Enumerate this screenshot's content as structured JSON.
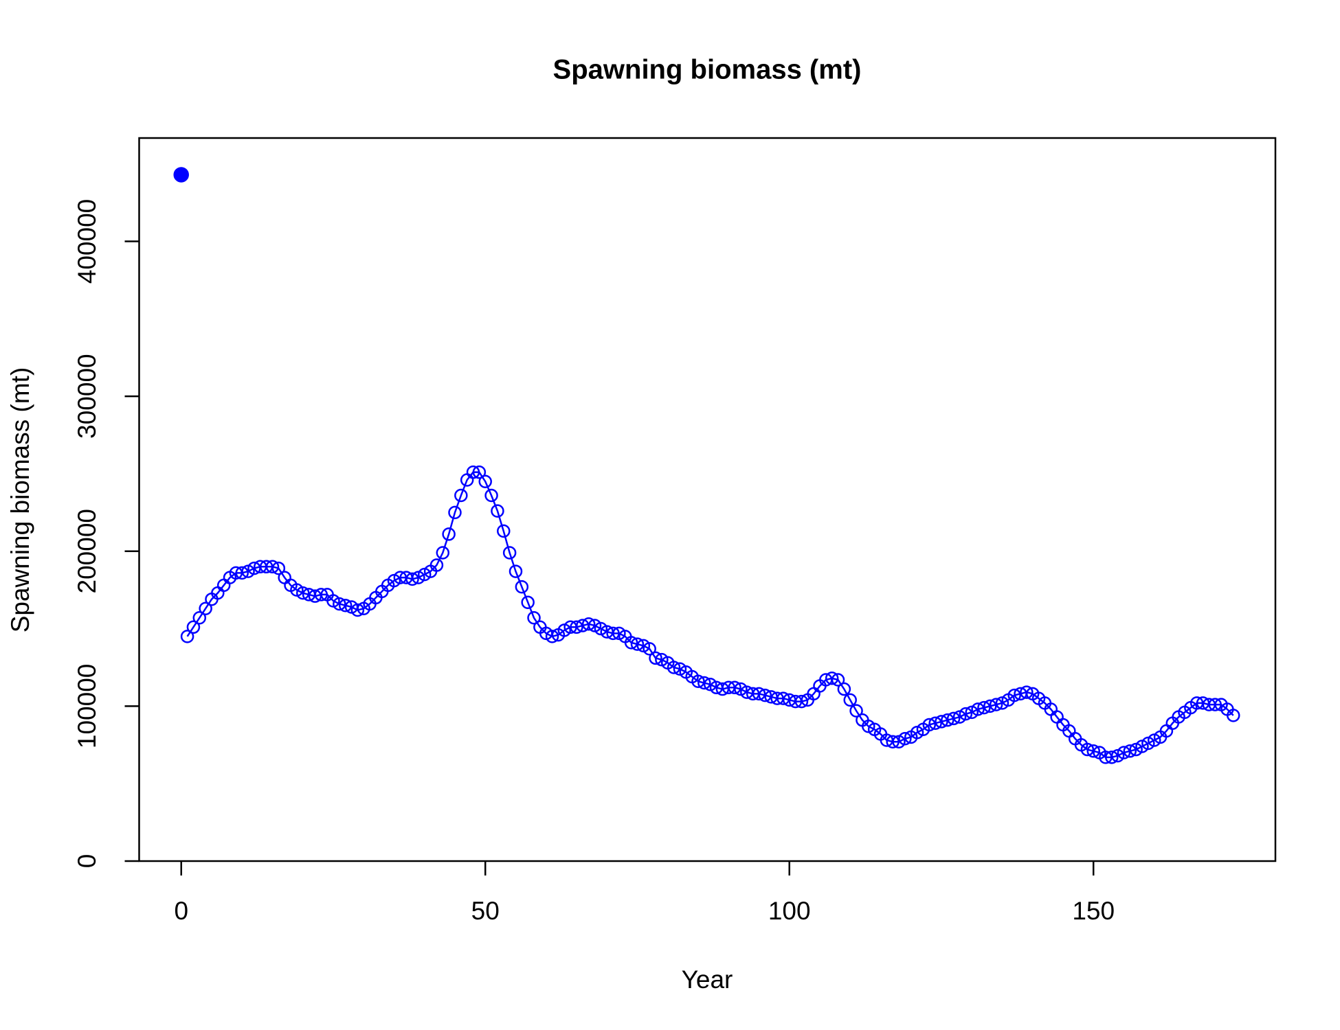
{
  "chart_data": {
    "type": "line",
    "title": "Spawning biomass (mt)",
    "xlabel": "Year",
    "ylabel": "Spawning biomass (mt)",
    "xlim": [
      -6.92,
      179.92
    ],
    "ylim": [
      0,
      466700
    ],
    "xticks": [
      0,
      50,
      100,
      150
    ],
    "yticks": [
      0,
      100000,
      200000,
      300000,
      400000
    ],
    "grid": false,
    "series": [
      {
        "color": "#0000ff",
        "marker": "filled-circle",
        "line": false,
        "x": [
          0
        ],
        "values": [
          443000
        ]
      },
      {
        "color": "#0000ff",
        "marker": "open-circle",
        "line": true,
        "x": [
          1,
          2,
          3,
          4,
          5,
          6,
          7,
          8,
          9,
          10,
          11,
          12,
          13,
          14,
          15,
          16,
          17,
          18,
          19,
          20,
          21,
          22,
          23,
          24,
          25,
          26,
          27,
          28,
          29,
          30,
          31,
          32,
          33,
          34,
          35,
          36,
          37,
          38,
          39,
          40,
          41,
          42,
          43,
          44,
          45,
          46,
          47,
          48,
          49,
          50,
          51,
          52,
          53,
          54,
          55,
          56,
          57,
          58,
          59,
          60,
          61,
          62,
          63,
          64,
          65,
          66,
          67,
          68,
          69,
          70,
          71,
          72,
          73,
          74,
          75,
          76,
          77,
          78,
          79,
          80,
          81,
          82,
          83,
          84,
          85,
          86,
          87,
          88,
          89,
          90,
          91,
          92,
          93,
          94,
          95,
          96,
          97,
          98,
          99,
          100,
          101,
          102,
          103,
          104,
          105,
          106,
          107,
          108,
          109,
          110,
          111,
          112,
          113,
          114,
          115,
          116,
          117,
          118,
          119,
          120,
          121,
          122,
          123,
          124,
          125,
          126,
          127,
          128,
          129,
          130,
          131,
          132,
          133,
          134,
          135,
          136,
          137,
          138,
          139,
          140,
          141,
          142,
          143,
          144,
          145,
          146,
          147,
          148,
          149,
          150,
          151,
          152,
          153,
          154,
          155,
          156,
          157,
          158,
          159,
          160,
          161,
          162,
          163,
          164,
          165,
          166,
          167,
          168,
          169,
          170,
          171,
          172,
          173
        ],
        "values": [
          145000,
          151000,
          157000,
          163000,
          169000,
          173000,
          178000,
          183000,
          186000,
          186000,
          187000,
          189000,
          190000,
          190000,
          190000,
          189000,
          183000,
          178000,
          175000,
          173000,
          172000,
          171000,
          172000,
          172000,
          168000,
          166000,
          165000,
          164000,
          162000,
          163000,
          166000,
          170000,
          174000,
          178000,
          181000,
          183000,
          183000,
          182000,
          183000,
          185000,
          187000,
          191000,
          199000,
          211000,
          225000,
          236000,
          246000,
          251000,
          251000,
          245000,
          236000,
          226000,
          213000,
          199000,
          187000,
          177000,
          167000,
          157000,
          151000,
          147000,
          145000,
          146000,
          149000,
          151000,
          151000,
          152000,
          153000,
          152000,
          150000,
          148000,
          147000,
          147000,
          145000,
          141000,
          140000,
          139000,
          137000,
          131000,
          130000,
          128000,
          125000,
          124000,
          122000,
          119000,
          116000,
          115000,
          114000,
          112000,
          111000,
          112000,
          112000,
          111000,
          109000,
          108000,
          108000,
          107000,
          106000,
          105000,
          105000,
          104000,
          103000,
          103000,
          104000,
          108000,
          113000,
          117000,
          118000,
          117000,
          111000,
          104000,
          97000,
          91000,
          87000,
          85000,
          82000,
          78000,
          77000,
          77000,
          79000,
          80000,
          83000,
          85000,
          88000,
          89000,
          90000,
          91000,
          92000,
          93000,
          95000,
          96000,
          98000,
          99000,
          100000,
          101000,
          102000,
          104000,
          107000,
          108000,
          109000,
          108000,
          105000,
          102000,
          98000,
          93000,
          88000,
          84000,
          79000,
          75000,
          72000,
          71000,
          70000,
          67000,
          67000,
          68000,
          70000,
          71000,
          72000,
          74000,
          76000,
          78000,
          80000,
          84000,
          89000,
          93000,
          96000,
          99000,
          102000,
          102000,
          101000,
          101000,
          101000,
          98000,
          94000
        ]
      }
    ]
  }
}
